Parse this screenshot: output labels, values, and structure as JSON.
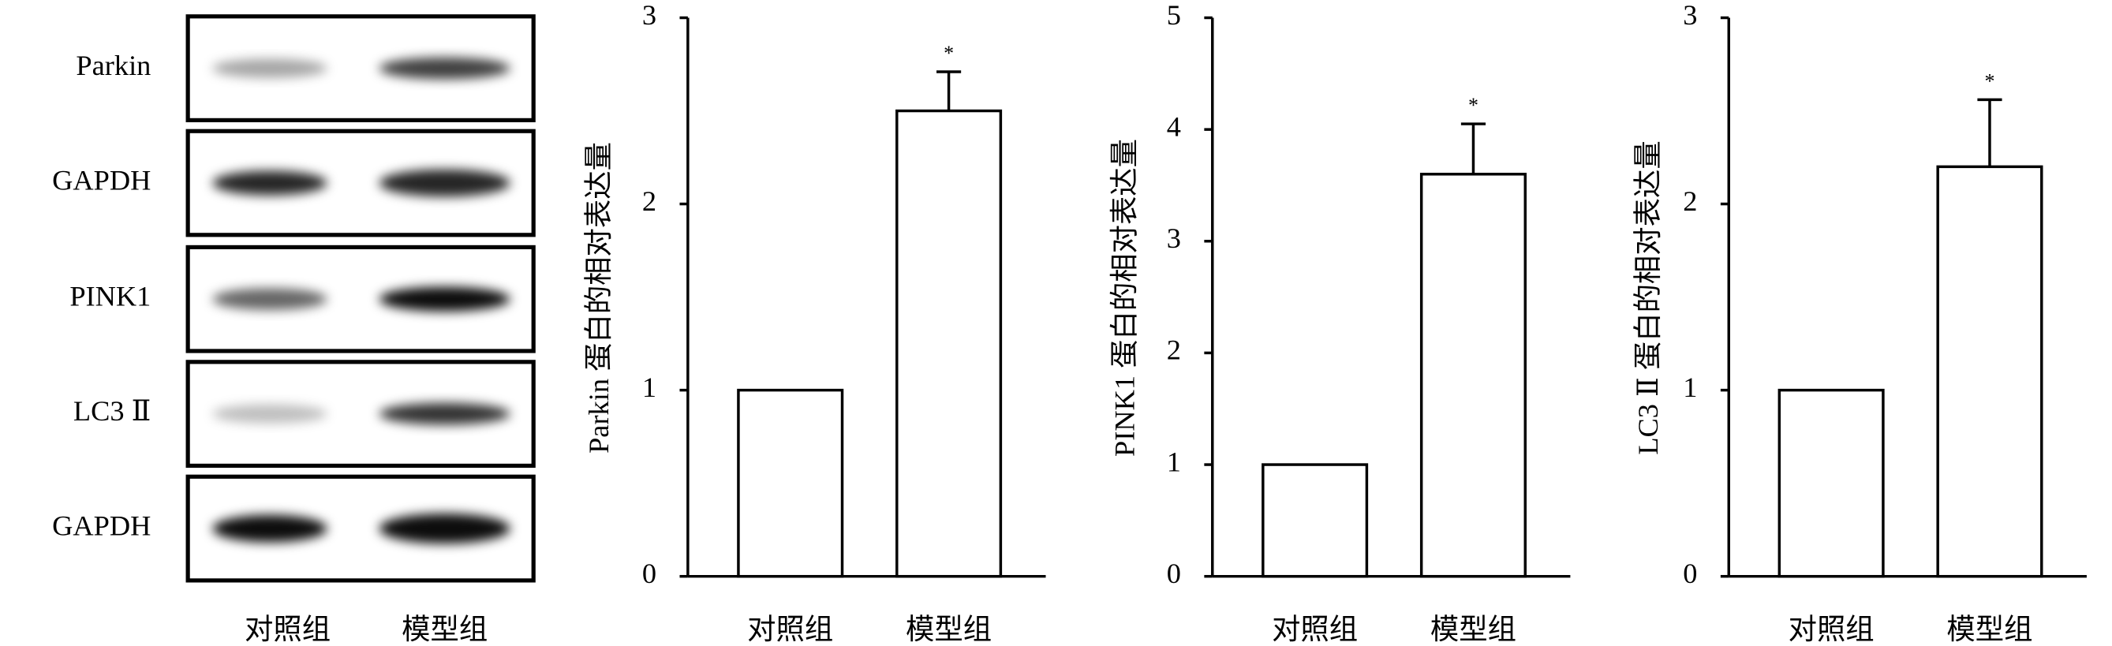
{
  "blot": {
    "labels": [
      "Parkin",
      "GAPDH",
      "PINK1",
      "LC3 Ⅱ",
      "GAPDH"
    ],
    "categories": [
      "对照组",
      "模型组"
    ]
  },
  "chart_data": [
    {
      "type": "bar",
      "ylabel": "Parkin 蛋白的相对表达量",
      "categories": [
        "对照组",
        "模型组"
      ],
      "values": [
        1,
        2.5
      ],
      "errors": [
        0,
        0.21
      ],
      "annotation": "*",
      "color": "#ffffff",
      "ylim": [
        0,
        3
      ],
      "yticks": [
        0,
        1,
        2,
        3
      ]
    },
    {
      "type": "bar",
      "ylabel": "PINK1 蛋白的相对表达量",
      "categories": [
        "对照组",
        "模型组"
      ],
      "values": [
        1,
        3.6
      ],
      "errors": [
        0,
        0.45
      ],
      "annotation": "*",
      "color": "#ffffff",
      "ylim": [
        0,
        5
      ],
      "yticks": [
        0,
        1,
        2,
        3,
        4,
        5
      ]
    },
    {
      "type": "bar",
      "ylabel": "LC3 Ⅱ 蛋白的相对表达量",
      "categories": [
        "对照组",
        "模型组"
      ],
      "values": [
        1,
        2.2
      ],
      "errors": [
        0,
        0.36
      ],
      "annotation": "*",
      "color": "#ffffff",
      "ylim": [
        0,
        3
      ],
      "yticks": [
        0,
        1,
        2,
        3
      ]
    }
  ]
}
